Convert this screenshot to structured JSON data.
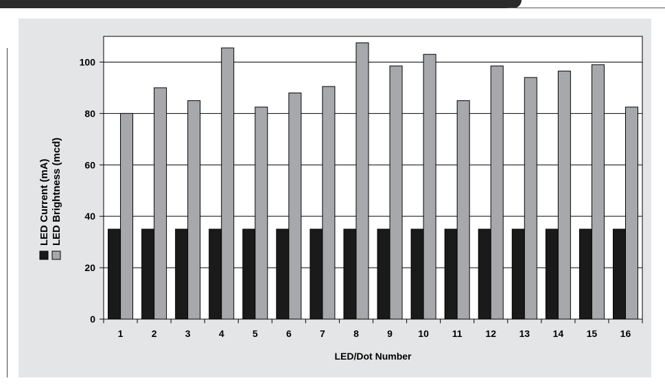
{
  "chart_data": {
    "type": "bar",
    "xlabel": "LED/Dot Number",
    "ylabel": "",
    "ylim": [
      0,
      110
    ],
    "yticks": [
      0,
      20,
      40,
      60,
      80,
      100
    ],
    "grid": "horizontal",
    "legend_position": "left, vertical",
    "categories": [
      "1",
      "2",
      "3",
      "4",
      "5",
      "6",
      "7",
      "8",
      "9",
      "10",
      "11",
      "12",
      "13",
      "14",
      "15",
      "16"
    ],
    "series": [
      {
        "name": "LED Current (mA)",
        "color": "#1a1a1a",
        "values": [
          35,
          35,
          35,
          35,
          35,
          35,
          35,
          35,
          35,
          35,
          35,
          35,
          35,
          35,
          35,
          35
        ]
      },
      {
        "name": "LED Brightness (mcd)",
        "color": "#a6a8ab",
        "values": [
          80,
          90,
          85,
          105.5,
          82.5,
          88,
          90.5,
          107.5,
          98.5,
          103,
          85,
          98.5,
          94,
          96.5,
          99,
          82.5
        ]
      }
    ]
  }
}
